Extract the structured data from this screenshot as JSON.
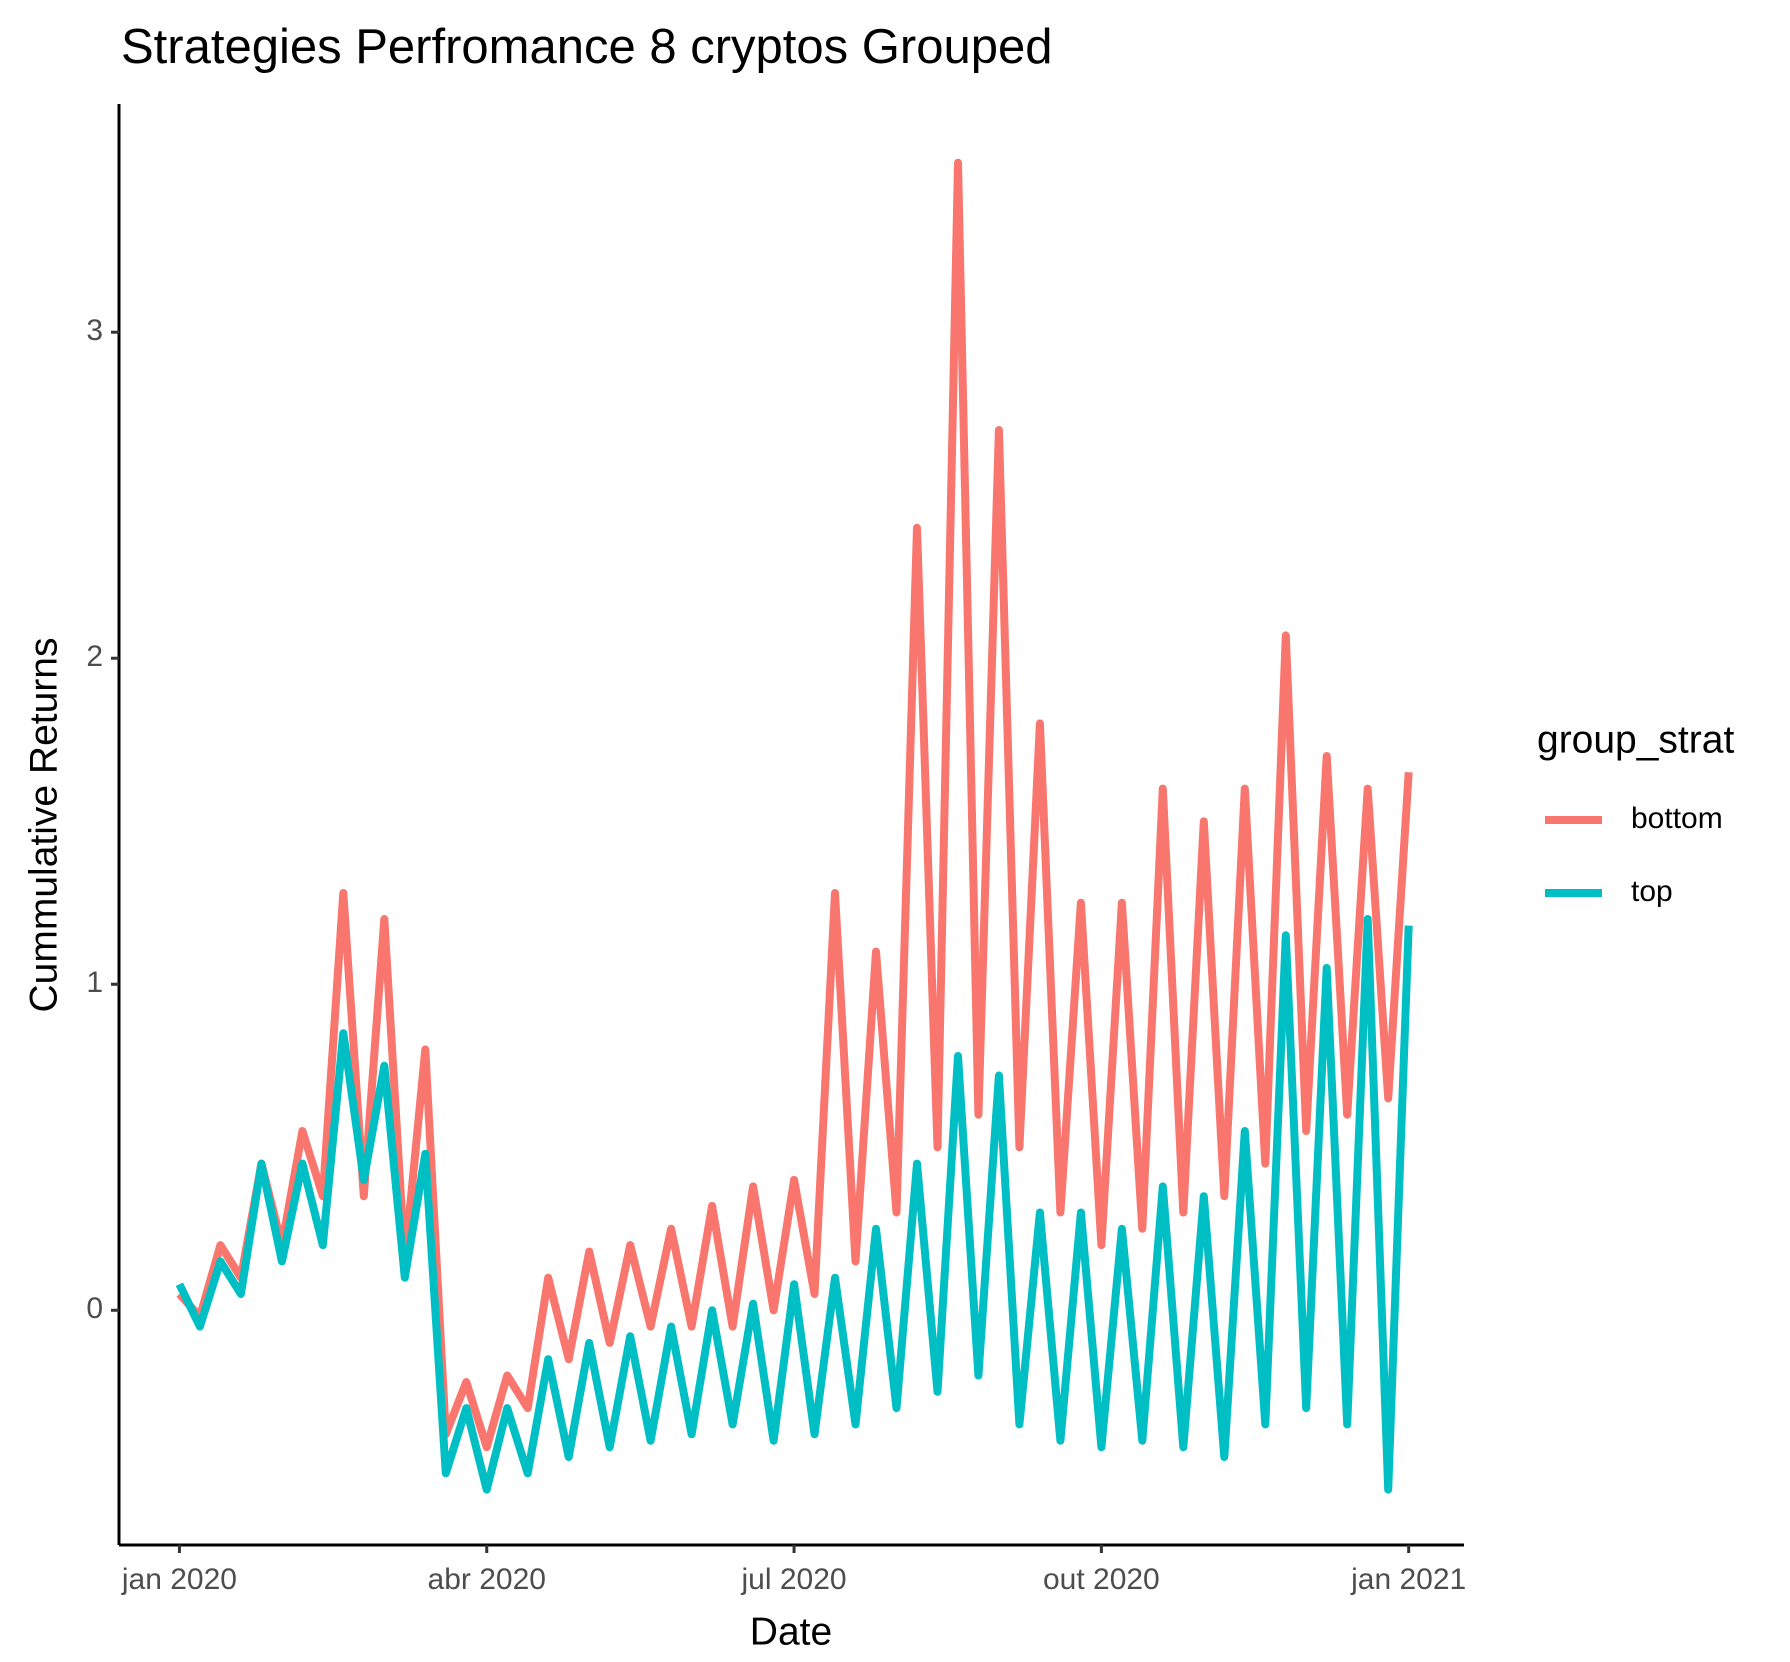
{
  "chart_data": {
    "type": "line",
    "title": "Strategies Perfromance 8 cryptos Grouped",
    "x_label": "Date",
    "y_label": "Cummulative Returns",
    "legend_title": "group_strat",
    "legend": "right",
    "grid": false,
    "x": [
      0,
      0.2,
      0.4,
      0.6,
      0.8,
      1,
      1.2,
      1.4,
      1.6,
      1.8,
      2,
      2.2,
      2.4,
      2.6,
      2.8,
      3,
      3.2,
      3.4,
      3.6,
      3.8,
      4,
      4.2,
      4.4,
      4.6,
      4.8,
      5,
      5.2,
      5.4,
      5.6,
      5.8,
      6,
      6.2,
      6.4,
      6.6,
      6.8,
      7,
      7.2,
      7.4,
      7.6,
      7.8,
      8,
      8.2,
      8.4,
      8.6,
      8.8,
      9,
      9.2,
      9.4,
      9.6,
      9.8,
      10,
      10.2,
      10.4,
      10.6,
      10.8,
      11,
      11.2,
      11.4,
      11.6,
      11.8,
      12
    ],
    "series": [
      {
        "name": "bottom",
        "color": "#f8766d",
        "values": [
          0.05,
          -0.02,
          0.2,
          0.1,
          0.45,
          0.2,
          0.55,
          0.35,
          1.28,
          0.35,
          1.2,
          0.15,
          0.8,
          -0.38,
          -0.22,
          -0.42,
          -0.2,
          -0.3,
          0.1,
          -0.15,
          0.18,
          -0.1,
          0.2,
          -0.05,
          0.25,
          -0.05,
          0.32,
          -0.05,
          0.38,
          0,
          0.4,
          0.05,
          1.28,
          0.15,
          1.1,
          0.3,
          2.4,
          0.5,
          3.52,
          0.6,
          2.7,
          0.5,
          1.8,
          0.3,
          1.25,
          0.2,
          1.25,
          0.25,
          1.6,
          0.3,
          1.5,
          0.35,
          1.6,
          0.45,
          2.07,
          0.55,
          1.7,
          0.6,
          1.6,
          0.65,
          1.65
        ]
      },
      {
        "name": "top",
        "color": "#00bfc4",
        "values": [
          0.08,
          -0.05,
          0.15,
          0.05,
          0.45,
          0.15,
          0.45,
          0.2,
          0.85,
          0.4,
          0.75,
          0.1,
          0.48,
          -0.5,
          -0.3,
          -0.55,
          -0.3,
          -0.5,
          -0.15,
          -0.45,
          -0.1,
          -0.42,
          -0.08,
          -0.4,
          -0.05,
          -0.38,
          0,
          -0.35,
          0.02,
          -0.4,
          0.08,
          -0.38,
          0.1,
          -0.35,
          0.25,
          -0.3,
          0.45,
          -0.25,
          0.78,
          -0.2,
          0.72,
          -0.35,
          0.3,
          -0.4,
          0.3,
          -0.42,
          0.25,
          -0.4,
          0.38,
          -0.42,
          0.35,
          -0.45,
          0.55,
          -0.35,
          1.15,
          -0.3,
          1.05,
          -0.35,
          1.2,
          -0.55,
          1.18
        ]
      }
    ],
    "xlim": [
      -0.59,
      12.54
    ],
    "xticks": [
      {
        "value": 0,
        "label": "jan 2020"
      },
      {
        "value": 3,
        "label": "abr 2020"
      },
      {
        "value": 6,
        "label": "jul 2020"
      },
      {
        "value": 9,
        "label": "out 2020"
      },
      {
        "value": 12,
        "label": "jan 2021"
      }
    ],
    "ylim": [
      -0.72,
      3.7
    ],
    "yticks": [
      0,
      1,
      2,
      3
    ]
  }
}
